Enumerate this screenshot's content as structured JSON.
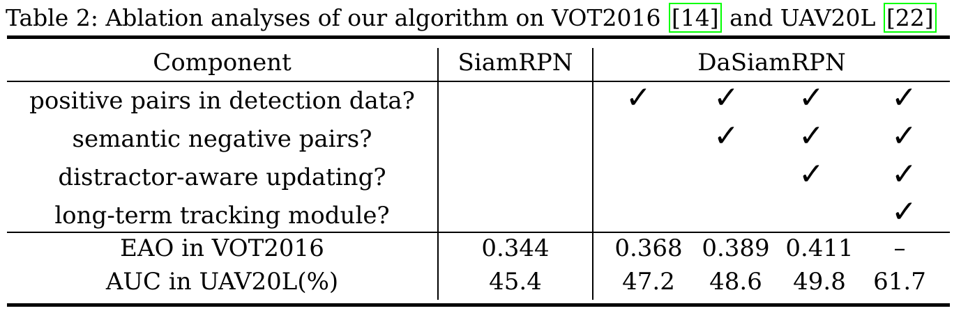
{
  "caption": {
    "prefix": "Table 2: Ablation analyses of our algorithm on VOT2016 ",
    "cite1": "[14]",
    "middle": " and UAV20L ",
    "cite2": "[22]"
  },
  "header": {
    "component": "Component",
    "siamrpn": "SiamRPN",
    "dasiamrpn": "DaSiamRPN"
  },
  "components": [
    "positive pairs in detection data?",
    "semantic negative pairs?",
    "distractor-aware updating?",
    "long-term tracking module?"
  ],
  "check_glyph": "✓",
  "checks": [
    [
      true,
      true,
      true,
      true
    ],
    [
      false,
      true,
      true,
      true
    ],
    [
      false,
      false,
      true,
      true
    ],
    [
      false,
      false,
      false,
      true
    ]
  ],
  "metrics": [
    {
      "label": "EAO in VOT2016",
      "siamrpn": "0.344",
      "dasiamrpn": [
        "0.368",
        "0.389",
        "0.411",
        "–"
      ]
    },
    {
      "label": "AUC in UAV20L(%)",
      "siamrpn": "45.4",
      "dasiamrpn": [
        "47.2",
        "48.6",
        "49.8",
        "61.7"
      ]
    }
  ]
}
